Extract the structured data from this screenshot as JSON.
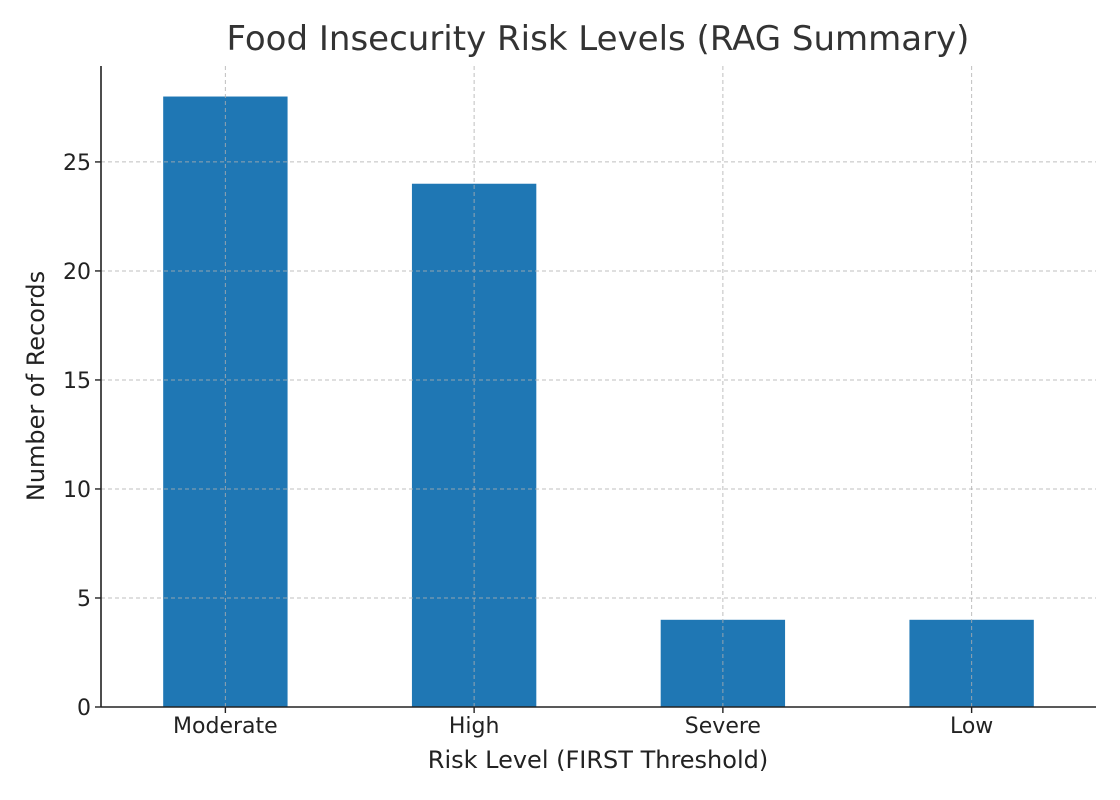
{
  "chart_data": {
    "type": "bar",
    "title": "Food Insecurity Risk Levels (RAG Summary)",
    "xlabel": "Risk Level (FIRST Threshold)",
    "ylabel": "Number of Records",
    "categories": [
      "Moderate",
      "High",
      "Severe",
      "Low"
    ],
    "values": [
      28,
      24,
      4,
      4
    ],
    "ylim": [
      0,
      29.4
    ],
    "yticks": [
      0,
      5,
      10,
      15,
      20,
      25
    ],
    "grid": true,
    "bar_color": "#1f77b4"
  }
}
